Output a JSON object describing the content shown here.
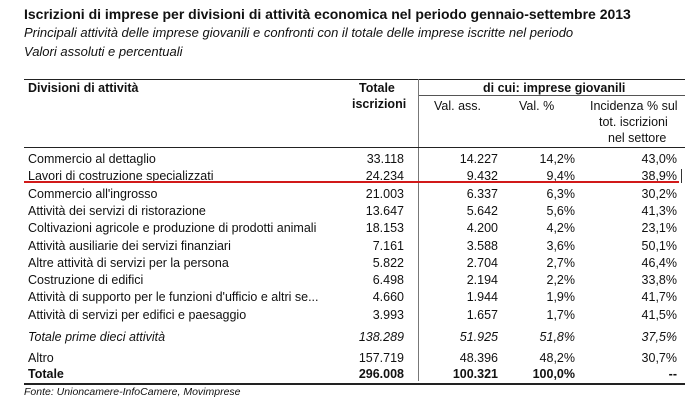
{
  "title": "Iscrizioni di imprese per divisioni di attività economica nel periodo gennaio-settembre 2013",
  "subtitle_line1": "Principali attività delle imprese giovanili e confronti con il totale delle imprese iscritte nel periodo",
  "subtitle_line2": "Valori assoluti e percentuali",
  "headers": {
    "divisioni": "Divisioni di attività",
    "totale_1": "Totale",
    "totale_2": "iscrizioni",
    "group": "di cui: imprese giovanili",
    "val_ass": "Val. ass.",
    "val_pct": "Val.  %",
    "inc_1": "Incidenza % sul",
    "inc_2": "tot. iscrizioni",
    "inc_3": "nel settore"
  },
  "rows": [
    {
      "label": "Commercio al dettaglio",
      "totale": "33.118",
      "val_ass": "14.227",
      "val_pct": "14,2%",
      "incidenza": "43,0%"
    },
    {
      "label": "Lavori di costruzione specializzati",
      "totale": "24.234",
      "val_ass": "9.432",
      "val_pct": "9,4%",
      "incidenza": "38,9%"
    },
    {
      "label": "Commercio all'ingrosso",
      "totale": "21.003",
      "val_ass": "6.337",
      "val_pct": "6,3%",
      "incidenza": "30,2%"
    },
    {
      "label": "Attività dei servizi di ristorazione",
      "totale": "13.647",
      "val_ass": "5.642",
      "val_pct": "5,6%",
      "incidenza": "41,3%"
    },
    {
      "label": "Coltivazioni agricole e produzione di prodotti animali",
      "totale": "18.153",
      "val_ass": "4.200",
      "val_pct": "4,2%",
      "incidenza": "23,1%"
    },
    {
      "label": "Attività ausiliarie dei servizi finanziari",
      "totale": "7.161",
      "val_ass": "3.588",
      "val_pct": "3,6%",
      "incidenza": "50,1%"
    },
    {
      "label": "Altre attività di servizi per la persona",
      "totale": "5.822",
      "val_ass": "2.704",
      "val_pct": "2,7%",
      "incidenza": "46,4%"
    },
    {
      "label": "Costruzione di edifici",
      "totale": "6.498",
      "val_ass": "2.194",
      "val_pct": "2,2%",
      "incidenza": "33,8%"
    },
    {
      "label": "Attività di supporto per le funzioni d'ufficio e altri se...",
      "totale": "4.660",
      "val_ass": "1.944",
      "val_pct": "1,9%",
      "incidenza": "41,7%"
    },
    {
      "label": "Attività di servizi per edifici e paesaggio",
      "totale": "3.993",
      "val_ass": "1.657",
      "val_pct": "1,7%",
      "incidenza": "41,5%"
    }
  ],
  "total_top10": {
    "label": "Totale prime dieci attività",
    "totale": "138.289",
    "val_ass": "51.925",
    "val_pct": "51,8%",
    "incidenza": "37,5%"
  },
  "altro": {
    "label": "Altro",
    "totale": "157.719",
    "val_ass": "48.396",
    "val_pct": "48,2%",
    "incidenza": "30,7%"
  },
  "totale": {
    "label": "Totale",
    "totale": "296.008",
    "val_ass": "100.321",
    "val_pct": "100,0%",
    "incidenza": "--"
  },
  "source": "Fonte: Unioncamere-InfoCamere, Movimprese",
  "colors": {
    "highlight_line": "#d11919"
  }
}
